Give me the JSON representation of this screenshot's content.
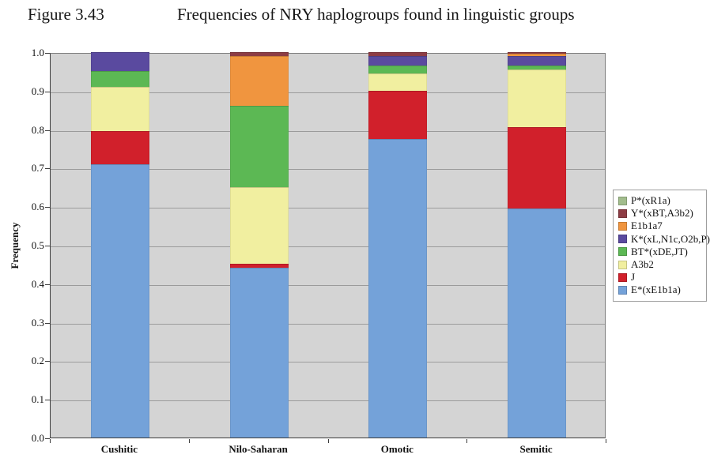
{
  "title": {
    "figure_label": "Figure 3.43",
    "text": "Frequencies of NRY haplogroups found in linguistic groups"
  },
  "y_axis": {
    "label": "Frequency",
    "tick_labels": [
      "1.0",
      "0.9",
      "0.8",
      "0.7",
      "0.6",
      "0.5",
      "0.4",
      "0.3",
      "0.2",
      "0.1",
      "0.0"
    ]
  },
  "x_axis": {
    "category_labels": [
      "Cushitic",
      "Nilo-Saharan",
      "Omotic",
      "Semitic"
    ]
  },
  "legend": {
    "position": "right",
    "items": [
      {
        "label": "P*(xR1a)",
        "color": "#a2bd8d"
      },
      {
        "label": "Y*(xBT,A3b2)",
        "color": "#8d3c44"
      },
      {
        "label": "E1b1a7",
        "color": "#f0953f"
      },
      {
        "label": "K*(xL,N1c,O2b,P)",
        "color": "#5a4a9f"
      },
      {
        "label": "BT*(xDE,JT)",
        "color": "#5cb854"
      },
      {
        "label": "A3b2",
        "color": "#f1efa0"
      },
      {
        "label": "J",
        "color": "#d1202b"
      },
      {
        "label": "E*(xE1b1a)",
        "color": "#74a2d9"
      }
    ]
  },
  "chart_data": {
    "type": "bar",
    "stacked": true,
    "title": "Frequencies of NRY haplogroups found in linguistic groups",
    "xlabel": "",
    "ylabel": "Frequency",
    "ylim": [
      0,
      1
    ],
    "ytick_step": 0.1,
    "grid": true,
    "legend_position": "right",
    "plot_background": "#d4d4d4",
    "categories": [
      "Cushitic",
      "Nilo-Saharan",
      "Omotic",
      "Semitic"
    ],
    "series_bottom_to_top": [
      {
        "name": "E*(xE1b1a)",
        "color": "#74a2d9",
        "values": [
          0.71,
          0.44,
          0.775,
          0.595
        ]
      },
      {
        "name": "J",
        "color": "#d1202b",
        "values": [
          0.085,
          0.01,
          0.125,
          0.21
        ]
      },
      {
        "name": "A3b2",
        "color": "#f1efa0",
        "values": [
          0.115,
          0.2,
          0.045,
          0.15
        ]
      },
      {
        "name": "BT*(xDE,JT)",
        "color": "#5cb854",
        "values": [
          0.04,
          0.21,
          0.02,
          0.01
        ]
      },
      {
        "name": "K*(xL,N1c,O2b,P)",
        "color": "#5a4a9f",
        "values": [
          0.05,
          0.0,
          0.025,
          0.025
        ]
      },
      {
        "name": "E1b1a7",
        "color": "#f0953f",
        "values": [
          0.0,
          0.13,
          0.0,
          0.005
        ]
      },
      {
        "name": "Y*(xBT,A3b2)",
        "color": "#8d3c44",
        "values": [
          0.0,
          0.01,
          0.01,
          0.005
        ]
      },
      {
        "name": "P*(xR1a)",
        "color": "#a2bd8d",
        "values": [
          0.0,
          0.0,
          0.0,
          0.0
        ]
      }
    ]
  }
}
